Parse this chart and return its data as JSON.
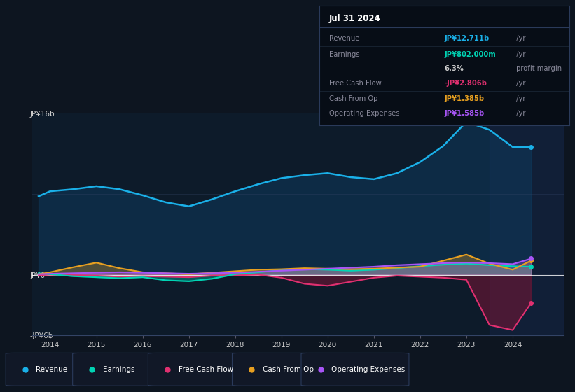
{
  "bg_color": "#0d1520",
  "plot_bg_color": "#0d1b2a",
  "ylim": [
    -6000000000.0,
    16000000000.0
  ],
  "xlim": [
    2013.6,
    2025.1
  ],
  "years": [
    2013.75,
    2014.0,
    2014.5,
    2015.0,
    2015.5,
    2016.0,
    2016.5,
    2017.0,
    2017.5,
    2018.0,
    2018.5,
    2019.0,
    2019.5,
    2020.0,
    2020.5,
    2021.0,
    2021.5,
    2022.0,
    2022.5,
    2023.0,
    2023.5,
    2024.0,
    2024.4
  ],
  "revenue": [
    7800000000.0,
    8300000000.0,
    8500000000.0,
    8800000000.0,
    8500000000.0,
    7900000000.0,
    7200000000.0,
    6800000000.0,
    7500000000.0,
    8300000000.0,
    9000000000.0,
    9600000000.0,
    9900000000.0,
    10100000000.0,
    9700000000.0,
    9500000000.0,
    10100000000.0,
    11200000000.0,
    12800000000.0,
    15200000000.0,
    14400000000.0,
    12700000000.0,
    12700000000.0
  ],
  "earnings": [
    150000000.0,
    50000000.0,
    -150000000.0,
    -250000000.0,
    -350000000.0,
    -250000000.0,
    -550000000.0,
    -650000000.0,
    -400000000.0,
    50000000.0,
    250000000.0,
    450000000.0,
    550000000.0,
    500000000.0,
    400000000.0,
    500000000.0,
    650000000.0,
    850000000.0,
    1000000000.0,
    1100000000.0,
    950000000.0,
    850000000.0,
    800000000.0
  ],
  "free_cash_flow": [
    -50000000.0,
    0.0,
    -50000000.0,
    -100000000.0,
    -200000000.0,
    -150000000.0,
    -200000000.0,
    -250000000.0,
    -100000000.0,
    -50000000.0,
    0.0,
    -300000000.0,
    -900000000.0,
    -1100000000.0,
    -700000000.0,
    -300000000.0,
    -100000000.0,
    -200000000.0,
    -300000000.0,
    -500000000.0,
    -5000000000.0,
    -5500000000.0,
    -2800000000.0
  ],
  "cash_from_op": [
    50000000.0,
    250000000.0,
    750000000.0,
    1200000000.0,
    650000000.0,
    250000000.0,
    150000000.0,
    50000000.0,
    200000000.0,
    350000000.0,
    500000000.0,
    550000000.0,
    650000000.0,
    600000000.0,
    550000000.0,
    600000000.0,
    700000000.0,
    800000000.0,
    1400000000.0,
    2000000000.0,
    1100000000.0,
    500000000.0,
    1400000000.0
  ],
  "operating_expenses": [
    50000000.0,
    100000000.0,
    150000000.0,
    200000000.0,
    250000000.0,
    200000000.0,
    150000000.0,
    100000000.0,
    150000000.0,
    200000000.0,
    300000000.0,
    400000000.0,
    500000000.0,
    600000000.0,
    700000000.0,
    800000000.0,
    950000000.0,
    1050000000.0,
    1150000000.0,
    1200000000.0,
    1150000000.0,
    1050000000.0,
    1600000000.0
  ],
  "revenue_color": "#1ab0e8",
  "earnings_color": "#00d4b4",
  "fcf_color": "#e03070",
  "cashop_color": "#e8a020",
  "opex_color": "#a855f7",
  "revenue_fill_color": "#0e3a5c",
  "fcf_fill_color": "#7a1535",
  "legend_items": [
    {
      "label": "Revenue",
      "color": "#1ab0e8"
    },
    {
      "label": "Earnings",
      "color": "#00d4b4"
    },
    {
      "label": "Free Cash Flow",
      "color": "#e03070"
    },
    {
      "label": "Cash From Op",
      "color": "#e8a020"
    },
    {
      "label": "Operating Expenses",
      "color": "#a855f7"
    }
  ],
  "info_box": {
    "date": "Jul 31 2024",
    "rows": [
      {
        "label": "Revenue",
        "value": "JP¥12.711b",
        "suffix": " /yr",
        "value_color": "#1ab0e8"
      },
      {
        "label": "Earnings",
        "value": "JP¥802.000m",
        "suffix": " /yr",
        "value_color": "#00d4b4"
      },
      {
        "label": "",
        "value": "6.3%",
        "suffix": " profit margin",
        "value_color": "#cccccc"
      },
      {
        "label": "Free Cash Flow",
        "value": "-JP¥2.806b",
        "suffix": " /yr",
        "value_color": "#e03070"
      },
      {
        "label": "Cash From Op",
        "value": "JP¥1.385b",
        "suffix": " /yr",
        "value_color": "#e8a020"
      },
      {
        "label": "Operating Expenses",
        "value": "JP¥1.585b",
        "suffix": " /yr",
        "value_color": "#a855f7"
      }
    ]
  }
}
